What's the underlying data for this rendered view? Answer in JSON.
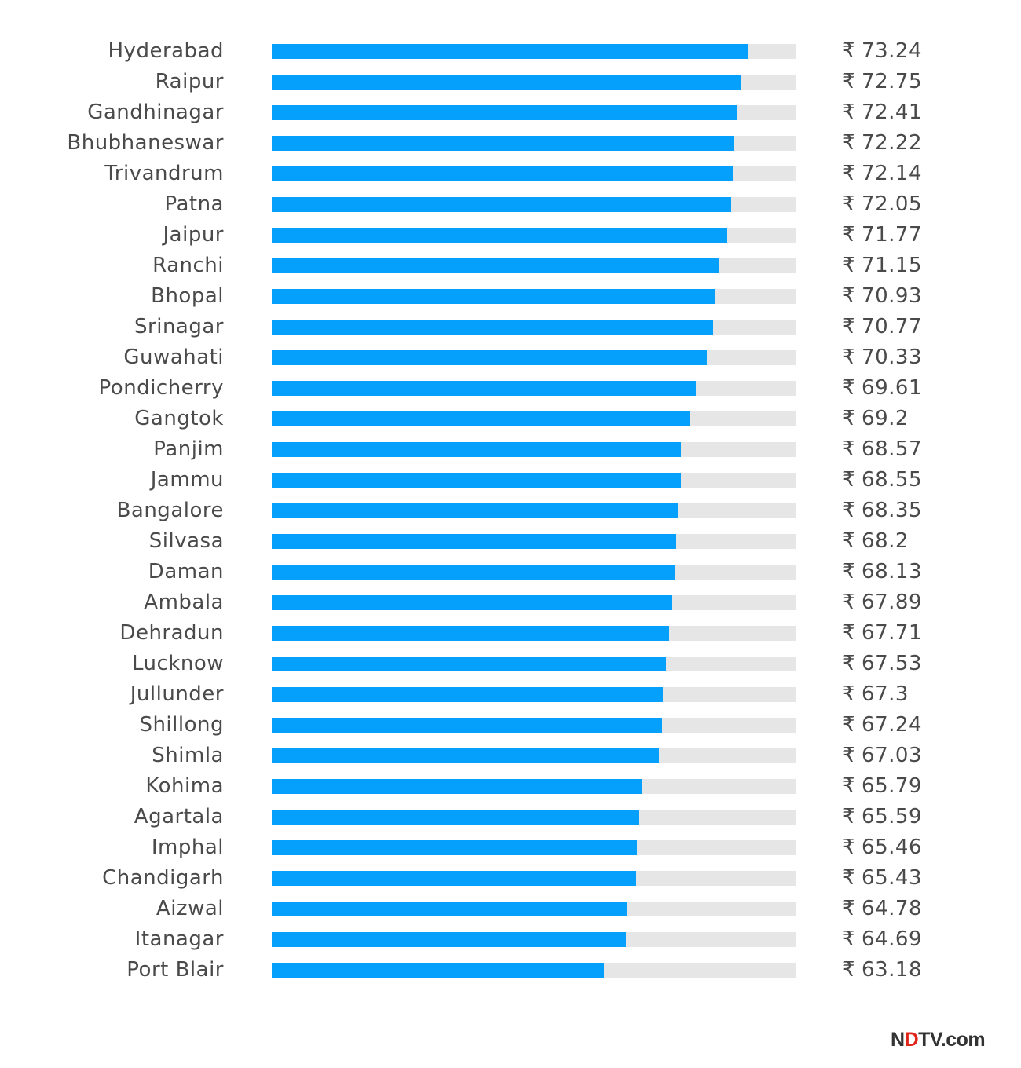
{
  "chart_data": {
    "type": "bar",
    "orientation": "horizontal",
    "currency_symbol": "₹",
    "categories": [
      "Hyderabad",
      "Raipur",
      "Gandhinagar",
      "Bhubhaneswar",
      "Trivandrum",
      "Patna",
      "Jaipur",
      "Ranchi",
      "Bhopal",
      "Srinagar",
      "Guwahati",
      "Pondicherry",
      "Gangtok",
      "Panjim",
      "Jammu",
      "Bangalore",
      "Silvasa",
      "Daman",
      "Ambala",
      "Dehradun",
      "Lucknow",
      "Jullunder",
      "Shillong",
      "Shimla",
      "Kohima",
      "Agartala",
      "Imphal",
      "Chandigarh",
      "Aizwal",
      "Itanagar",
      "Port Blair"
    ],
    "values": [
      73.24,
      72.75,
      72.41,
      72.22,
      72.14,
      72.05,
      71.77,
      71.15,
      70.93,
      70.77,
      70.33,
      69.61,
      69.2,
      68.57,
      68.55,
      68.35,
      68.2,
      68.13,
      67.89,
      67.71,
      67.53,
      67.3,
      67.24,
      67.03,
      65.79,
      65.59,
      65.46,
      65.43,
      64.78,
      64.69,
      63.18
    ],
    "value_labels": [
      "73.24",
      "72.75",
      "72.41",
      "72.22",
      "72.14",
      "72.05",
      "71.77",
      "71.15",
      "70.93",
      "70.77",
      "70.33",
      "69.61",
      "69.2",
      "68.57",
      "68.55",
      "68.35",
      "68.2",
      "68.13",
      "67.89",
      "67.71",
      "67.53",
      "67.3",
      "67.24",
      "67.03",
      "65.79",
      "65.59",
      "65.46",
      "65.43",
      "64.78",
      "64.69",
      "63.18"
    ],
    "xlim": [
      40,
      76.6
    ],
    "colors": {
      "bar": "#05a0fc",
      "track": "#e6e6e6",
      "text": "#4a4a4a"
    }
  },
  "branding": {
    "logo_text_start": "N",
    "logo_text_mark": "D",
    "logo_text_end": "TV.com",
    "logo_mark_color": "#e0261b"
  }
}
